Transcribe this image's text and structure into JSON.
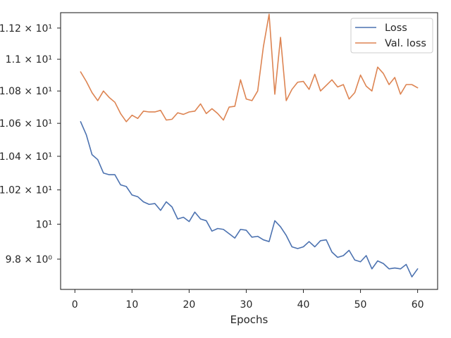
{
  "chart_data": {
    "type": "line",
    "title": "",
    "xlabel": "Epochs",
    "ylabel": "",
    "xlim": [
      -2.5,
      63.5
    ],
    "ylim": [
      9.63,
      11.3
    ],
    "x_ticks": [
      0,
      10,
      20,
      30,
      40,
      50,
      60
    ],
    "y_ticks": [
      {
        "value": 9.8,
        "label": "9.8 × 10⁰"
      },
      {
        "value": 10.0,
        "label": "10¹"
      },
      {
        "value": 10.2,
        "label": "1.02 × 10¹"
      },
      {
        "value": 10.4,
        "label": "1.04 × 10¹"
      },
      {
        "value": 10.6,
        "label": "1.06 × 10¹"
      },
      {
        "value": 10.8,
        "label": "1.08 × 10¹"
      },
      {
        "value": 11.0,
        "label": "1.1 × 10¹"
      },
      {
        "value": 11.2,
        "label": "1.12 × 10¹"
      }
    ],
    "y_scale": "log",
    "grid": false,
    "legend_position": "top-right",
    "x": [
      1,
      2,
      3,
      4,
      5,
      6,
      7,
      8,
      9,
      10,
      11,
      12,
      13,
      14,
      15,
      16,
      17,
      18,
      19,
      20,
      21,
      22,
      23,
      24,
      25,
      26,
      27,
      28,
      29,
      30,
      31,
      32,
      33,
      34,
      35,
      36,
      37,
      38,
      39,
      40,
      41,
      42,
      43,
      44,
      45,
      46,
      47,
      48,
      49,
      50,
      51,
      52,
      53,
      54,
      55,
      56,
      57,
      58,
      59,
      60
    ],
    "series": [
      {
        "name": "Loss",
        "color": "#4c72b0",
        "values": [
          10.61,
          10.53,
          10.41,
          10.38,
          10.3,
          10.29,
          10.29,
          10.23,
          10.22,
          10.17,
          10.16,
          10.13,
          10.115,
          10.12,
          10.08,
          10.13,
          10.1,
          10.03,
          10.04,
          10.015,
          10.07,
          10.03,
          10.02,
          9.96,
          9.975,
          9.97,
          9.945,
          9.92,
          9.97,
          9.965,
          9.925,
          9.93,
          9.91,
          9.9,
          10.02,
          9.985,
          9.935,
          9.87,
          9.86,
          9.87,
          9.9,
          9.87,
          9.905,
          9.91,
          9.84,
          9.81,
          9.82,
          9.85,
          9.795,
          9.785,
          9.82,
          9.745,
          9.79,
          9.775,
          9.745,
          9.75,
          9.745,
          9.77,
          9.7,
          9.745
        ]
      },
      {
        "name": "Val. loss",
        "color": "#dd8452",
        "values": [
          10.92,
          10.86,
          10.79,
          10.74,
          10.8,
          10.76,
          10.73,
          10.66,
          10.61,
          10.65,
          10.63,
          10.675,
          10.67,
          10.67,
          10.68,
          10.62,
          10.625,
          10.665,
          10.655,
          10.67,
          10.675,
          10.72,
          10.66,
          10.69,
          10.66,
          10.62,
          10.7,
          10.705,
          10.87,
          10.75,
          10.74,
          10.8,
          11.08,
          11.29,
          10.78,
          11.14,
          10.74,
          10.81,
          10.855,
          10.86,
          10.81,
          10.905,
          10.8,
          10.835,
          10.87,
          10.825,
          10.84,
          10.75,
          10.79,
          10.9,
          10.83,
          10.8,
          10.95,
          10.91,
          10.84,
          10.885,
          10.78,
          10.84,
          10.84,
          10.82
        ]
      }
    ]
  }
}
